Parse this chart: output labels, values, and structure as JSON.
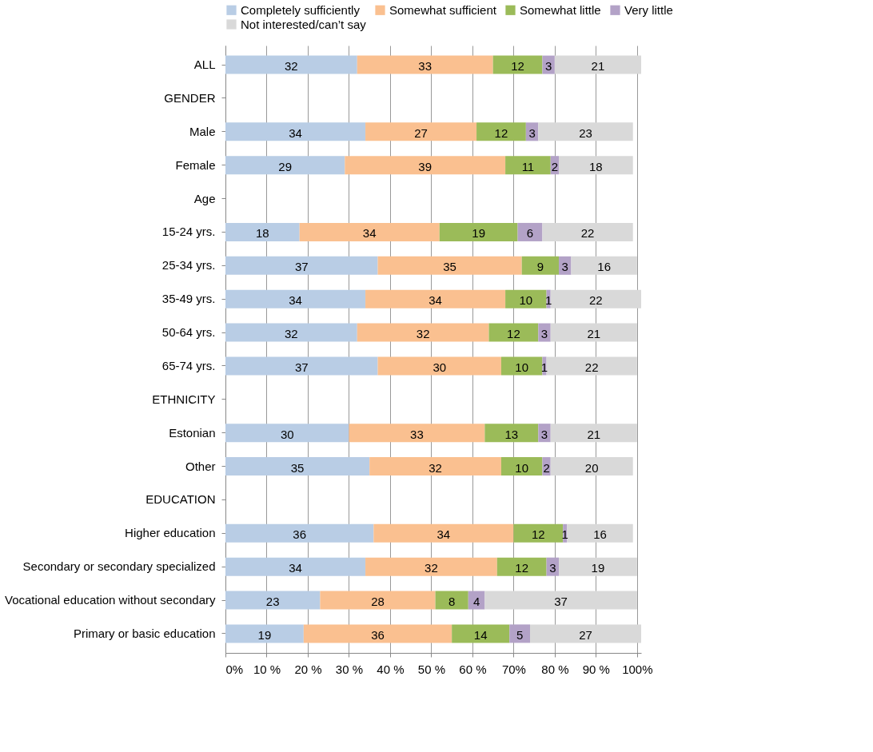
{
  "chart_data": {
    "type": "bar",
    "orientation": "horizontal",
    "stacked": true,
    "data_labels": true,
    "grid": "x",
    "legend": "top",
    "categories": [
      "ALL",
      "GENDER",
      "Male",
      "Female",
      "Age",
      "15-24 yrs.",
      "25-34 yrs.",
      "35-49 yrs.",
      "50-64 yrs.",
      "65-74 yrs.",
      "ETHNICITY",
      "Estonian",
      "Other",
      "EDUCATION",
      "Higher education",
      "Secondary or secondary specialized",
      "Vocational education without secondary",
      "Primary or basic education"
    ],
    "series": [
      {
        "name": "Completely sufficiently",
        "color": "#b9cde5",
        "values": [
          32,
          null,
          34,
          29,
          null,
          18,
          37,
          34,
          32,
          37,
          null,
          30,
          35,
          null,
          36,
          34,
          23,
          19
        ]
      },
      {
        "name": "Somewhat sufficient",
        "color": "#fac090",
        "values": [
          33,
          null,
          27,
          39,
          null,
          34,
          35,
          34,
          32,
          30,
          null,
          33,
          32,
          null,
          34,
          32,
          28,
          36
        ]
      },
      {
        "name": "Somewhat little",
        "color": "#9bbb59",
        "values": [
          12,
          null,
          12,
          11,
          null,
          19,
          9,
          10,
          12,
          10,
          null,
          13,
          10,
          null,
          12,
          12,
          8,
          14
        ]
      },
      {
        "name": "Very little",
        "color": "#b3a2c7",
        "values": [
          3,
          null,
          3,
          2,
          null,
          6,
          3,
          1,
          3,
          1,
          null,
          3,
          2,
          null,
          1,
          3,
          4,
          5
        ]
      },
      {
        "name": "Not interested/can’t say",
        "color": "#d9d9d9",
        "values": [
          21,
          null,
          23,
          18,
          null,
          22,
          16,
          22,
          21,
          22,
          null,
          21,
          20,
          null,
          16,
          19,
          37,
          27
        ]
      }
    ],
    "xlim": [
      0,
      101
    ],
    "xticks": [
      {
        "value": 0,
        "label": "0%"
      },
      {
        "value": 10,
        "label": "10 %"
      },
      {
        "value": 20,
        "label": "20 %"
      },
      {
        "value": 30,
        "label": "30 %"
      },
      {
        "value": 40,
        "label": "40 %"
      },
      {
        "value": 50,
        "label": "50 %"
      },
      {
        "value": 60,
        "label": "60 %"
      },
      {
        "value": 70,
        "label": "70%"
      },
      {
        "value": 80,
        "label": "80 %"
      },
      {
        "value": 90,
        "label": "90 %"
      },
      {
        "value": 100,
        "label": "100%"
      }
    ]
  }
}
